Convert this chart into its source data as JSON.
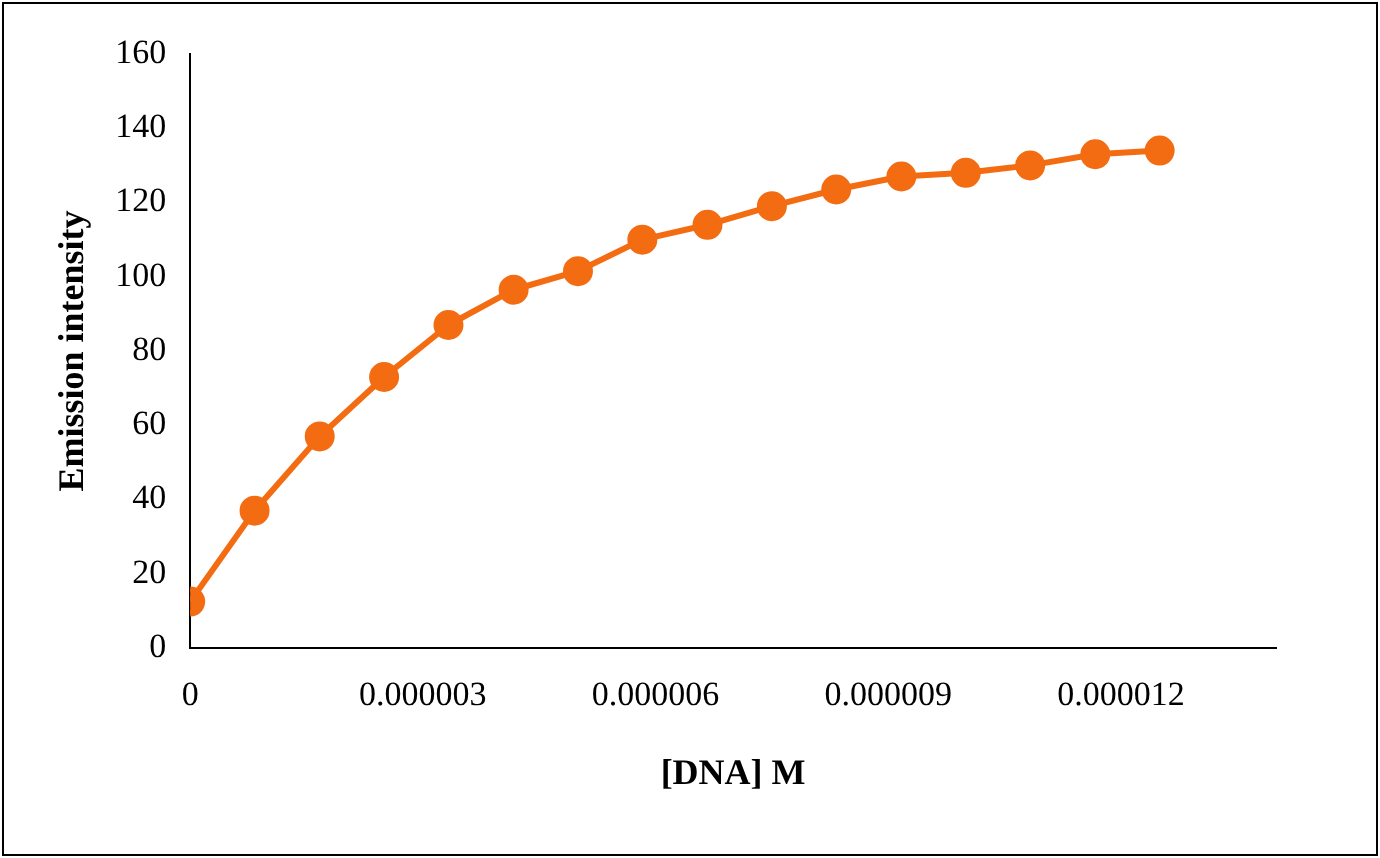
{
  "chart_data": {
    "type": "line",
    "xlabel": "[DNA] M",
    "ylabel": "Emission intensity",
    "x": [
      0,
      8.3e-07,
      1.67e-06,
      2.5e-06,
      3.33e-06,
      4.17e-06,
      5e-06,
      5.83e-06,
      6.67e-06,
      7.5e-06,
      8.33e-06,
      9.17e-06,
      1e-05,
      1.083e-05,
      1.167e-05,
      1.25e-05
    ],
    "series": [
      {
        "color": "#f36c12",
        "values": [
          12.5,
          37,
          57,
          73,
          87,
          96.5,
          101.5,
          110,
          114,
          119,
          123.5,
          127,
          128,
          130,
          133,
          134
        ]
      }
    ],
    "xlim": [
      0,
      1.4e-05
    ],
    "xticks": [
      0,
      {
        "value": 3e-06,
        "label": "0.000003"
      },
      {
        "value": 6e-06,
        "label": "0.000006"
      },
      {
        "value": 9e-06,
        "label": "0.000009"
      },
      {
        "value": 1.2e-05,
        "label": "0.000012"
      }
    ],
    "ylim": [
      0,
      160
    ],
    "yticks": [
      0,
      20,
      40,
      60,
      80,
      100,
      120,
      140,
      160
    ],
    "grid": false,
    "legend": false,
    "marker": "circle",
    "line_style": "solid"
  }
}
